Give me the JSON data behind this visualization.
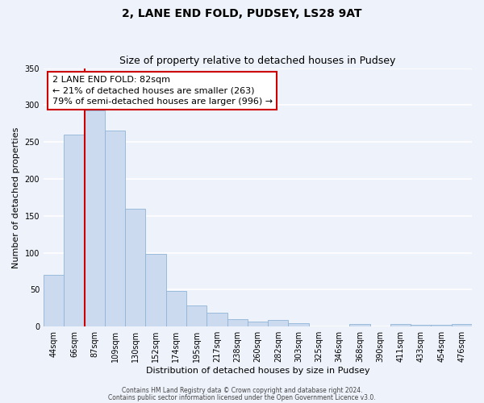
{
  "title": "2, LANE END FOLD, PUDSEY, LS28 9AT",
  "subtitle": "Size of property relative to detached houses in Pudsey",
  "xlabel": "Distribution of detached houses by size in Pudsey",
  "ylabel": "Number of detached properties",
  "bar_labels": [
    "44sqm",
    "66sqm",
    "87sqm",
    "109sqm",
    "130sqm",
    "152sqm",
    "174sqm",
    "195sqm",
    "217sqm",
    "238sqm",
    "260sqm",
    "282sqm",
    "303sqm",
    "325sqm",
    "346sqm",
    "368sqm",
    "390sqm",
    "411sqm",
    "433sqm",
    "454sqm",
    "476sqm"
  ],
  "bar_heights": [
    70,
    260,
    293,
    265,
    160,
    98,
    48,
    29,
    19,
    10,
    7,
    9,
    5,
    0,
    0,
    3,
    0,
    3,
    2,
    2,
    3
  ],
  "bar_color": "#ccdaf0",
  "bar_edge_color": "#90b4d8",
  "ylim": [
    0,
    350
  ],
  "yticks": [
    0,
    50,
    100,
    150,
    200,
    250,
    300,
    350
  ],
  "annotation_title": "2 LANE END FOLD: 82sqm",
  "annotation_line1": "← 21% of detached houses are smaller (263)",
  "annotation_line2": "79% of semi-detached houses are larger (996) →",
  "annotation_box_color": "#ffffff",
  "annotation_box_edge": "#cc0000",
  "footer1": "Contains HM Land Registry data © Crown copyright and database right 2024.",
  "footer2": "Contains public sector information licensed under the Open Government Licence v3.0.",
  "background_color": "#eef2fb",
  "grid_color": "#ffffff",
  "red_line_color": "#cc0000"
}
